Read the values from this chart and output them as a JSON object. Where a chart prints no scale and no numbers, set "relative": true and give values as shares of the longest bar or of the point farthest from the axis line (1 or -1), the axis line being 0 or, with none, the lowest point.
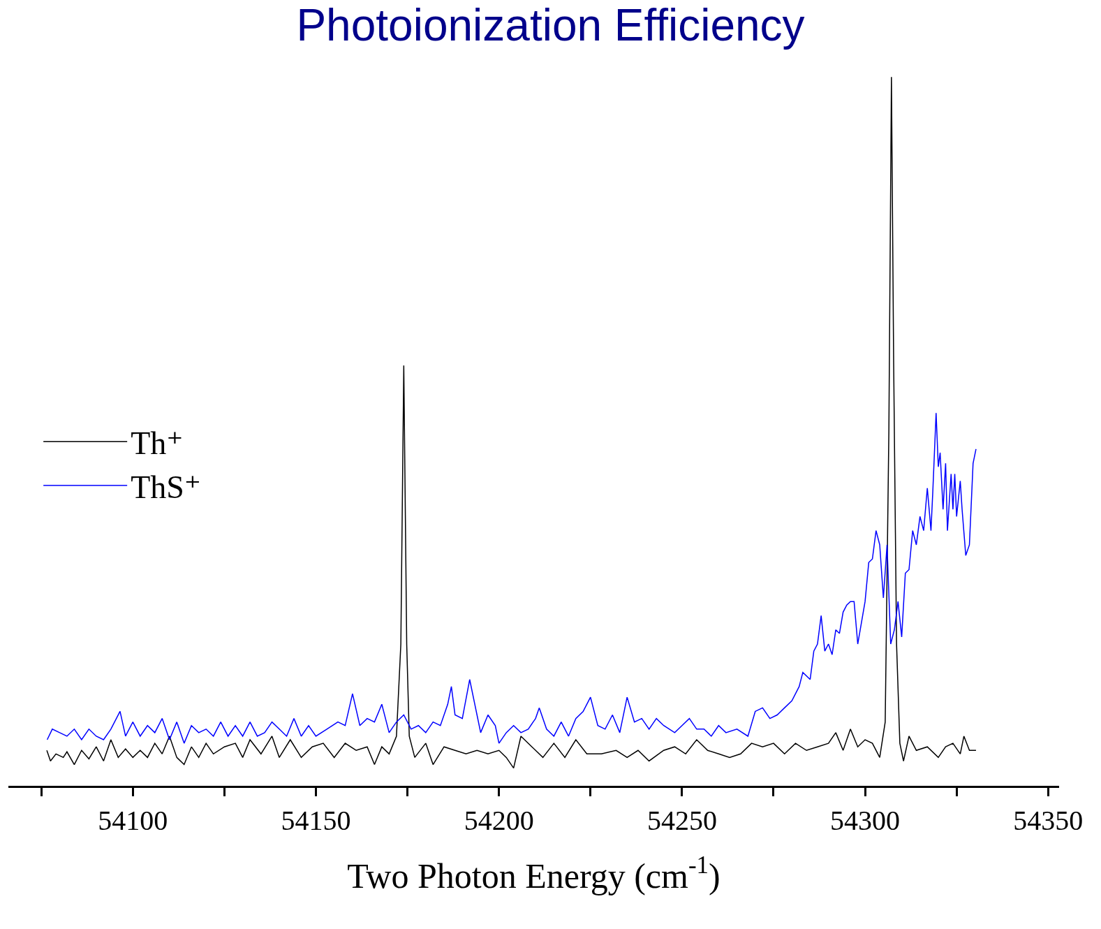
{
  "chart_data": {
    "type": "line",
    "title": "Photoionization Efficiency",
    "xlabel": "Two Photon Energy (cm$^{-1}$)",
    "relative": true,
    "legend": "left",
    "line_style": "solid",
    "marker": "none",
    "xlim": [
      54066,
      54353
    ],
    "xticks": [
      {
        "value": 54075,
        "label": null
      },
      54100,
      {
        "value": 54125,
        "label": null
      },
      54150,
      {
        "value": 54175,
        "label": null
      },
      54200,
      {
        "value": 54225,
        "label": null
      },
      54250,
      {
        "value": 54275,
        "label": null
      },
      54300,
      {
        "value": 54325,
        "label": null
      },
      54350
    ],
    "series": [
      {
        "name": "Th⁺",
        "color": "#000000",
        "x": [
          54076.5,
          54077.5,
          54079,
          54081,
          54082,
          54084,
          54086,
          54088,
          54090,
          54092,
          54094,
          54096,
          54098,
          54100,
          54102,
          54104,
          54106,
          54108,
          54110,
          54112,
          54114,
          54116,
          54118,
          54120,
          54122,
          54125,
          54128,
          54130,
          54132,
          54135,
          54138,
          54140,
          54143,
          54146,
          54149,
          54152,
          54155,
          54158,
          54161,
          54164,
          54166,
          54168,
          54170,
          54172,
          54173.2,
          54174,
          54174.8,
          54175.5,
          54177,
          54180,
          54182,
          54185,
          54188,
          54191,
          54194,
          54197,
          54200,
          54202,
          54204,
          54206,
          54209,
          54212,
          54215,
          54218,
          54221,
          54224,
          54228,
          54232,
          54235,
          54238,
          54241,
          54245,
          54248,
          54251,
          54254,
          54257,
          54260,
          54263,
          54266,
          54269,
          54272,
          54275,
          54278,
          54281,
          54284,
          54287,
          54290,
          54292,
          54294,
          54296,
          54298,
          54300,
          54302,
          54304,
          54305.5,
          54306.5,
          54307.2,
          54307.8,
          54308.6,
          54309.5,
          54310.5,
          54312,
          54314,
          54317,
          54320,
          54322,
          54324,
          54326,
          54327,
          54328.5,
          54330.3
        ],
        "values": [
          0.05,
          0.035,
          0.045,
          0.04,
          0.048,
          0.03,
          0.05,
          0.038,
          0.055,
          0.035,
          0.065,
          0.04,
          0.052,
          0.04,
          0.05,
          0.04,
          0.06,
          0.045,
          0.07,
          0.04,
          0.03,
          0.055,
          0.04,
          0.06,
          0.045,
          0.055,
          0.06,
          0.04,
          0.065,
          0.045,
          0.07,
          0.04,
          0.065,
          0.04,
          0.055,
          0.06,
          0.04,
          0.06,
          0.05,
          0.055,
          0.03,
          0.055,
          0.045,
          0.07,
          0.2,
          0.593,
          0.2,
          0.07,
          0.04,
          0.06,
          0.03,
          0.055,
          0.05,
          0.045,
          0.05,
          0.045,
          0.05,
          0.04,
          0.025,
          0.07,
          0.055,
          0.04,
          0.06,
          0.04,
          0.065,
          0.045,
          0.045,
          0.05,
          0.04,
          0.05,
          0.035,
          0.05,
          0.055,
          0.045,
          0.065,
          0.05,
          0.045,
          0.04,
          0.045,
          0.06,
          0.055,
          0.06,
          0.045,
          0.06,
          0.05,
          0.055,
          0.06,
          0.075,
          0.05,
          0.08,
          0.055,
          0.065,
          0.06,
          0.04,
          0.09,
          0.5,
          1.0,
          0.6,
          0.2,
          0.06,
          0.035,
          0.07,
          0.05,
          0.055,
          0.04,
          0.055,
          0.06,
          0.045,
          0.07,
          0.05,
          0.05
        ]
      },
      {
        "name": "ThS⁺",
        "color": "#0000ff",
        "x": [
          54076.6,
          54078,
          54080,
          54082,
          54084,
          54086,
          54088,
          54090,
          54092,
          54094,
          54096.5,
          54098,
          54100,
          54102,
          54104,
          54106,
          54108,
          54110,
          54112,
          54114,
          54116,
          54118,
          54120,
          54122,
          54124,
          54126,
          54128,
          54130,
          54132,
          54134,
          54136,
          54138,
          54140,
          54142,
          54144,
          54146,
          54148,
          54150,
          54153,
          54156,
          54158,
          54160,
          54162,
          54164,
          54166,
          54168,
          54170,
          54172,
          54174,
          54176,
          54178,
          54180,
          54182,
          54184,
          54186,
          54187,
          54188,
          54190,
          54192,
          54194,
          54195,
          54197,
          54199,
          54200,
          54202,
          54204,
          54206,
          54208,
          54210,
          54211,
          54213,
          54215,
          54217,
          54219,
          54221,
          54223,
          54225,
          54227,
          54229,
          54231,
          54233,
          54235,
          54237,
          54239,
          54241,
          54243,
          54245,
          54248,
          54250,
          54252,
          54254,
          54256,
          54258,
          54260,
          54262,
          54265,
          54268,
          54270,
          54272,
          54274,
          54276,
          54278,
          54280,
          54282,
          54283,
          54285,
          54286,
          54287,
          54288,
          54289,
          54290,
          54291,
          54292,
          54293,
          54294,
          54295,
          54296,
          54297,
          54298,
          54299,
          54300,
          54301,
          54302,
          54303,
          54304,
          54305,
          54306,
          54307,
          54308,
          54309,
          54310,
          54311,
          54312,
          54313,
          54314,
          54315,
          54316,
          54317,
          54318,
          54318.5,
          54319.4,
          54320,
          54320.5,
          54321.3,
          54322,
          54322.5,
          54323.5,
          54324,
          54324.5,
          54325,
          54326,
          54326.5,
          54327.5,
          54328.5,
          54329.5,
          54330.3
        ],
        "values": [
          0.065,
          0.08,
          0.075,
          0.07,
          0.08,
          0.065,
          0.08,
          0.07,
          0.065,
          0.08,
          0.105,
          0.07,
          0.09,
          0.07,
          0.085,
          0.075,
          0.095,
          0.065,
          0.09,
          0.06,
          0.085,
          0.075,
          0.08,
          0.07,
          0.09,
          0.07,
          0.085,
          0.07,
          0.09,
          0.07,
          0.075,
          0.09,
          0.08,
          0.07,
          0.095,
          0.07,
          0.085,
          0.07,
          0.08,
          0.09,
          0.085,
          0.13,
          0.085,
          0.095,
          0.09,
          0.115,
          0.075,
          0.09,
          0.1,
          0.08,
          0.085,
          0.075,
          0.09,
          0.085,
          0.115,
          0.14,
          0.1,
          0.095,
          0.15,
          0.1,
          0.075,
          0.1,
          0.085,
          0.06,
          0.075,
          0.085,
          0.075,
          0.08,
          0.095,
          0.11,
          0.08,
          0.07,
          0.09,
          0.07,
          0.095,
          0.105,
          0.125,
          0.085,
          0.08,
          0.1,
          0.075,
          0.125,
          0.09,
          0.095,
          0.08,
          0.095,
          0.085,
          0.075,
          0.085,
          0.095,
          0.08,
          0.08,
          0.07,
          0.085,
          0.075,
          0.08,
          0.07,
          0.105,
          0.11,
          0.095,
          0.1,
          0.11,
          0.12,
          0.14,
          0.16,
          0.15,
          0.19,
          0.2,
          0.24,
          0.19,
          0.2,
          0.185,
          0.22,
          0.215,
          0.245,
          0.255,
          0.26,
          0.26,
          0.2,
          0.23,
          0.26,
          0.315,
          0.32,
          0.36,
          0.34,
          0.265,
          0.34,
          0.2,
          0.22,
          0.26,
          0.21,
          0.3,
          0.305,
          0.36,
          0.34,
          0.38,
          0.36,
          0.42,
          0.36,
          0.415,
          0.526,
          0.45,
          0.47,
          0.39,
          0.455,
          0.36,
          0.44,
          0.39,
          0.44,
          0.38,
          0.43,
          0.39,
          0.325,
          0.34,
          0.455,
          0.475
        ]
      }
    ]
  }
}
